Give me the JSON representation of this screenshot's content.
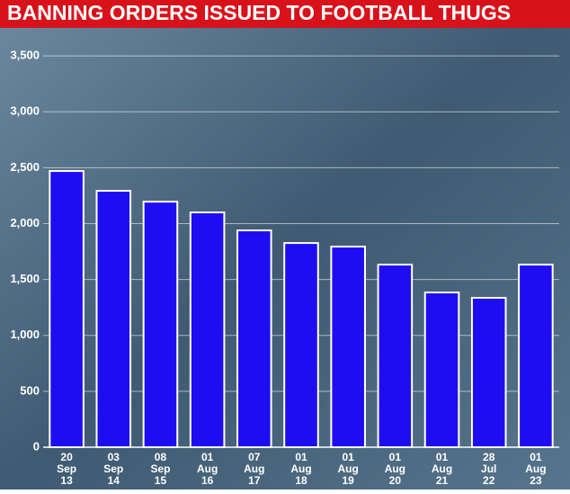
{
  "chart_data": {
    "type": "bar",
    "title": "BANNING ORDERS ISSUED TO FOOTBALL THUGS",
    "categories": [
      "20 Sep 13",
      "03 Sep 14",
      "08 Sep 15",
      "01 Aug 16",
      "07 Aug 17",
      "01 Aug 18",
      "01 Aug 19",
      "01 Aug 20",
      "01 Aug 21",
      "28 Jul 22",
      "01 Aug 23"
    ],
    "values": [
      2470,
      2293,
      2196,
      2100,
      1939,
      1826,
      1794,
      1633,
      1384,
      1336,
      1633
    ],
    "color": "#1f0df2",
    "ylim": [
      0,
      3750
    ],
    "yticks": [
      0,
      500,
      {
        "value": 1000,
        "label": "1,000"
      },
      {
        "value": 1500,
        "label": "1,500"
      },
      {
        "value": 2000,
        "label": "2,000"
      },
      {
        "value": 2500,
        "label": "2,500"
      },
      {
        "value": 3000,
        "label": "3,000"
      },
      {
        "value": 3500,
        "label": "3,500"
      }
    ],
    "grid": true
  }
}
